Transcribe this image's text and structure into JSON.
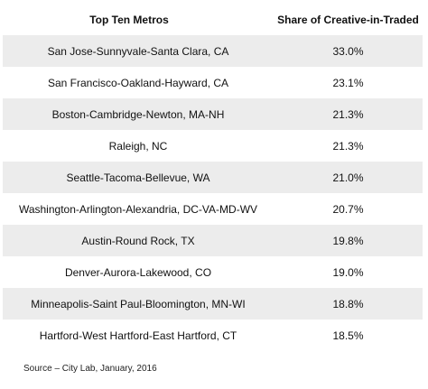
{
  "chart_data": {
    "type": "table",
    "columns": [
      "Top Ten Metros",
      "Share of Creative-in-Traded"
    ],
    "rows": [
      [
        "San Jose-Sunnyvale-Santa Clara, CA",
        "33.0%"
      ],
      [
        "San Francisco-Oakland-Hayward, CA",
        "23.1%"
      ],
      [
        "Boston-Cambridge-Newton, MA-NH",
        "21.3%"
      ],
      [
        "Raleigh, NC",
        "21.3%"
      ],
      [
        "Seattle-Tacoma-Bellevue, WA",
        "21.0%"
      ],
      [
        "Washington-Arlington-Alexandria, DC-VA-MD-WV",
        "20.7%"
      ],
      [
        "Austin-Round Rock, TX",
        "19.8%"
      ],
      [
        "Denver-Aurora-Lakewood, CO",
        "19.0%"
      ],
      [
        "Minneapolis-Saint Paul-Bloomington, MN-WI",
        "18.8%"
      ],
      [
        "Hartford-West Hartford-East Hartford, CT",
        "18.5%"
      ]
    ],
    "values": [
      33.0,
      23.1,
      21.3,
      21.3,
      21.0,
      20.7,
      19.8,
      19.0,
      18.8,
      18.5
    ],
    "shaded_row_color": "#ececec"
  },
  "source": "Source – City Lab, January, 2016"
}
